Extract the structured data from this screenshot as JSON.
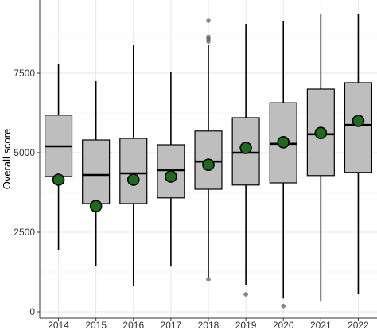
{
  "chart_data": {
    "type": "box",
    "ylabel": "Overall score",
    "xlabel": "",
    "ylim": [
      -200,
      9800
    ],
    "yticks": [
      0,
      2500,
      5000,
      7500
    ],
    "grid": true,
    "box_fill": "#bebebe",
    "mean_color": "#1e6b1e",
    "categories": [
      "2014",
      "2015",
      "2016",
      "2017",
      "2018",
      "2019",
      "2020",
      "2021",
      "2022"
    ],
    "boxes": [
      {
        "q1": 4250,
        "median": 5200,
        "q3": 6180,
        "whisker_low": 1950,
        "whisker_high": 7800,
        "mean": 4150,
        "outliers": []
      },
      {
        "q1": 3400,
        "median": 4300,
        "q3": 5400,
        "whisker_low": 1450,
        "whisker_high": 7250,
        "mean": 3320,
        "outliers": []
      },
      {
        "q1": 3400,
        "median": 4350,
        "q3": 5450,
        "whisker_low": 800,
        "whisker_high": 8400,
        "mean": 4150,
        "outliers": []
      },
      {
        "q1": 3580,
        "median": 4450,
        "q3": 5250,
        "whisker_low": 1420,
        "whisker_high": 7550,
        "mean": 4250,
        "outliers": []
      },
      {
        "q1": 3850,
        "median": 4720,
        "q3": 5680,
        "whisker_low": 1080,
        "whisker_high": 8400,
        "mean": 4620,
        "outliers": [
          1020,
          8500,
          8580,
          8640,
          9150
        ]
      },
      {
        "q1": 3980,
        "median": 5000,
        "q3": 6100,
        "whisker_low": 850,
        "whisker_high": 9050,
        "mean": 5150,
        "outliers": [
          550
        ]
      },
      {
        "q1": 4050,
        "median": 5280,
        "q3": 6570,
        "whisker_low": 420,
        "whisker_high": 9150,
        "mean": 5330,
        "outliers": [
          180
        ]
      },
      {
        "q1": 4280,
        "median": 5580,
        "q3": 7000,
        "whisker_low": 320,
        "whisker_high": 9350,
        "mean": 5620,
        "outliers": []
      },
      {
        "q1": 4380,
        "median": 5870,
        "q3": 7200,
        "whisker_low": 550,
        "whisker_high": 9350,
        "mean": 6000,
        "outliers": []
      }
    ]
  }
}
